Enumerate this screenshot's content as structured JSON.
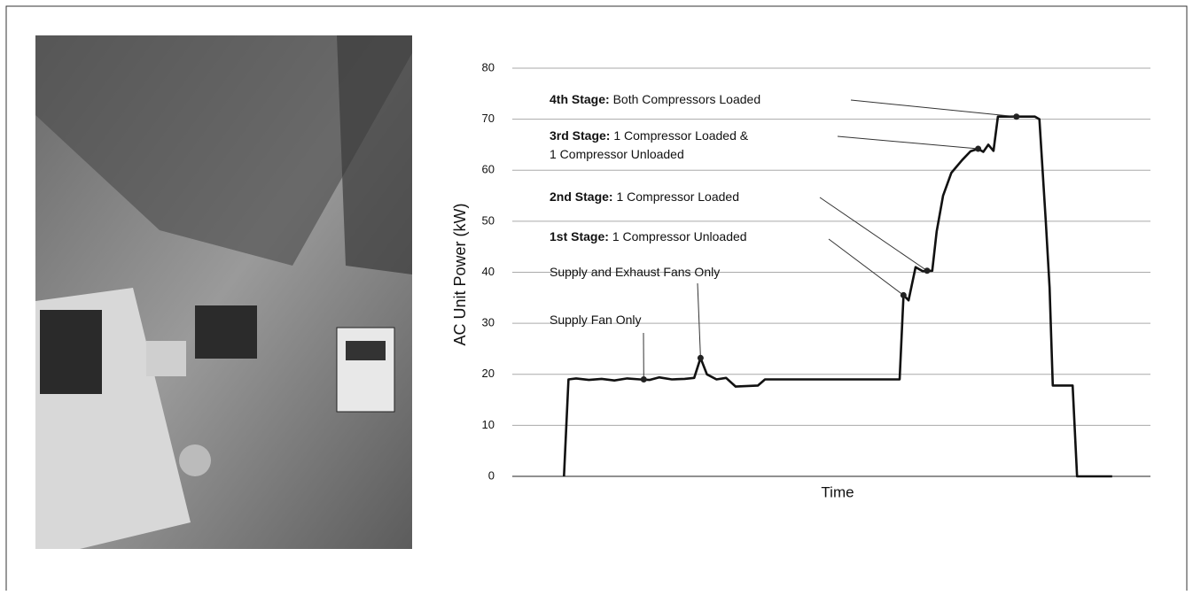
{
  "chart_data": {
    "type": "line",
    "xlabel": "Time",
    "ylabel": "AC Unit Power (kW)",
    "color": "#111111",
    "grid": true,
    "xlim": [
      0,
      100
    ],
    "ylim": [
      0,
      80
    ],
    "yticks": [
      0,
      10,
      20,
      30,
      40,
      50,
      60,
      70,
      80
    ],
    "x": [
      8.1,
      8.8,
      10,
      12,
      14,
      16,
      18,
      20,
      21.5,
      23,
      25,
      27,
      28.5,
      29.5,
      30.5,
      32,
      33.5,
      35,
      38.5,
      39.6,
      60.7,
      61.3,
      62.1,
      63.2,
      64.3,
      65.8,
      66.5,
      67.5,
      68.8,
      70.5,
      71.8,
      73,
      73.8,
      74.6,
      75.4,
      76.1,
      81.9,
      82.6,
      83.6,
      84.2,
      84.7,
      87.8,
      88.5,
      94
    ],
    "values": [
      0,
      19,
      19.2,
      18.9,
      19.1,
      18.8,
      19.2,
      19,
      18.9,
      19.4,
      19,
      19.1,
      19.3,
      23.2,
      20,
      19,
      19.3,
      17.6,
      17.8,
      19,
      19,
      35.5,
      34.5,
      41,
      40.2,
      40.3,
      48,
      55,
      59.5,
      62,
      63.7,
      64.2,
      63.6,
      65,
      63.8,
      70.5,
      70.5,
      70,
      50,
      37,
      17.8,
      17.8,
      0,
      0
    ],
    "annotations": [
      {
        "label": "4th Stage:",
        "text": [
          "Both Compressors Loaded"
        ],
        "x": 79,
        "y": 70.5
      },
      {
        "label": "3rd Stage:",
        "text": [
          "1 Compressor Loaded &",
          "1 Compressor Unloaded"
        ],
        "x": 73,
        "y": 64.2
      },
      {
        "label": "2nd Stage:",
        "text": [
          "1 Compressor Loaded"
        ],
        "x": 65,
        "y": 40.3
      },
      {
        "label": "1st Stage:",
        "text": [
          "1 Compressor Unloaded"
        ],
        "x": 61.3,
        "y": 35.5
      },
      {
        "text": [
          "Supply and Exhaust Fans Only"
        ],
        "x": 29.5,
        "y": 23.2
      },
      {
        "text": [
          "Supply Fan Only"
        ],
        "x": 20.6,
        "y": 19
      }
    ]
  }
}
